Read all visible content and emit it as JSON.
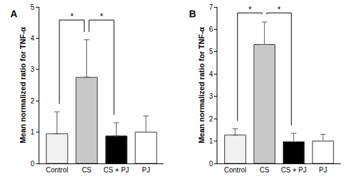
{
  "chart_data": [
    {
      "type": "bar",
      "panel": "A",
      "y_label": "Mean normalized ratio for TNF-α",
      "categories": [
        "Control",
        "CS",
        "CS + PJ",
        "PJ"
      ],
      "values": [
        0.95,
        2.75,
        0.88,
        1.0
      ],
      "errors": [
        0.7,
        1.2,
        0.42,
        0.52
      ],
      "colors": [
        "#f2f2f2",
        "#c8c8c8",
        "#000000",
        "#ffffff"
      ],
      "ylim": [
        0,
        5
      ],
      "yticks": [
        0,
        1,
        2,
        3,
        4,
        5
      ],
      "grid": false,
      "comparisons": [
        {
          "pair": [
            "Control",
            "CS"
          ],
          "label": "*"
        },
        {
          "pair": [
            "CS",
            "CS + PJ"
          ],
          "label": "*"
        }
      ]
    },
    {
      "type": "bar",
      "panel": "B",
      "y_label": "Mean normalized ratio for TNF-α",
      "categories": [
        "Control",
        "CS",
        "CS + PJ",
        "PJ"
      ],
      "values": [
        1.27,
        5.32,
        0.97,
        1.0
      ],
      "errors": [
        0.28,
        1.0,
        0.38,
        0.3
      ],
      "colors": [
        "#f2f2f2",
        "#c8c8c8",
        "#000000",
        "#ffffff"
      ],
      "ylim": [
        0,
        7
      ],
      "yticks": [
        0,
        1,
        2,
        3,
        4,
        5,
        6,
        7
      ],
      "grid": false,
      "comparisons": [
        {
          "pair": [
            "Control",
            "CS"
          ],
          "label": "*"
        },
        {
          "pair": [
            "CS",
            "CS + PJ"
          ],
          "label": "*"
        }
      ]
    }
  ]
}
